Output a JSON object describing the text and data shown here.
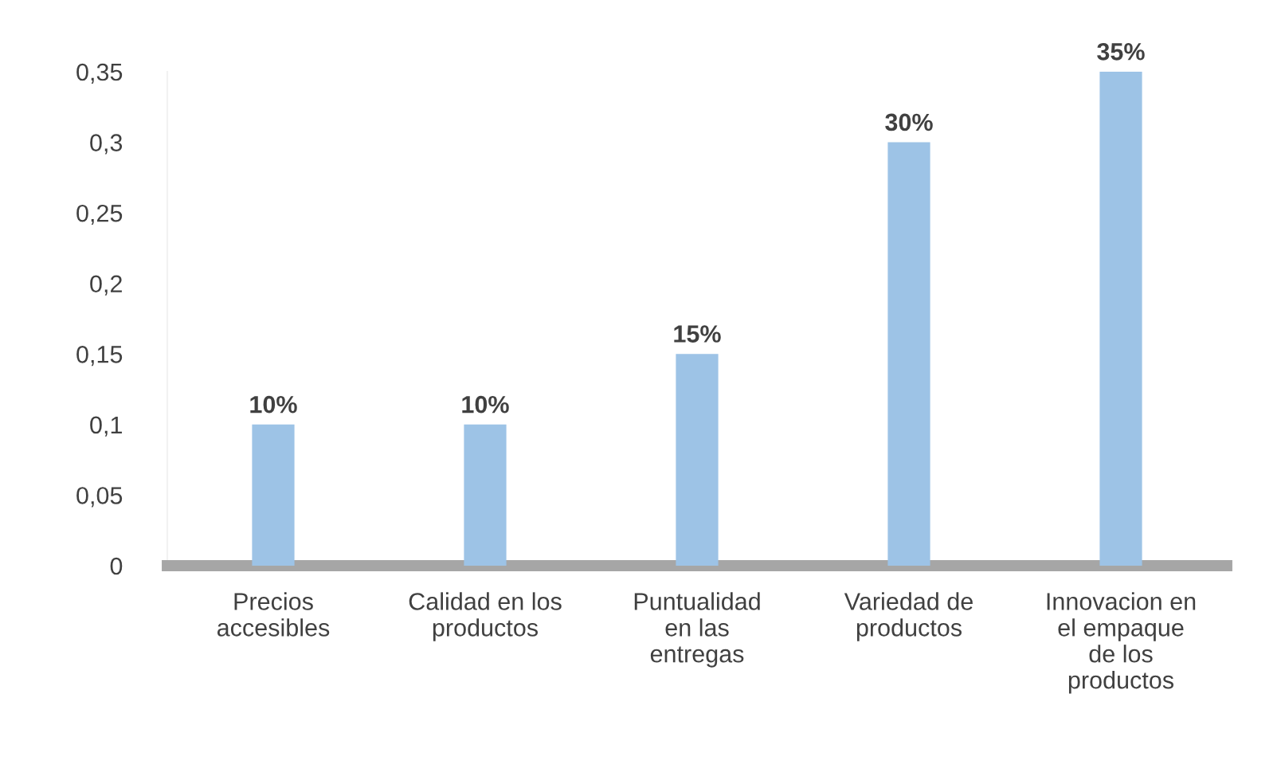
{
  "chart_data": {
    "type": "bar",
    "categories": [
      "Precios\naccesibles",
      "Calidad en los\nproductos",
      "Puntualidad\nen las\nentregas",
      "Variedad de\nproductos",
      "Innovacion en\nel empaque\nde los\nproductos"
    ],
    "values": [
      0.1,
      0.1,
      0.15,
      0.3,
      0.35
    ],
    "value_labels": [
      "10%",
      "10%",
      "15%",
      "30%",
      "35%"
    ],
    "color": "#9dc3e6",
    "ylim": [
      0,
      0.35
    ],
    "yticks": [
      0,
      {
        "value": 0.05,
        "label": "0,05"
      },
      {
        "value": 0.1,
        "label": "0,1"
      },
      {
        "value": 0.15,
        "label": "0,15"
      },
      {
        "value": 0.2,
        "label": "0,2"
      },
      {
        "value": 0.25,
        "label": "0,25"
      },
      {
        "value": 0.3,
        "label": "0,3"
      },
      {
        "value": 0.35,
        "label": "0,35"
      }
    ],
    "grid": false
  }
}
